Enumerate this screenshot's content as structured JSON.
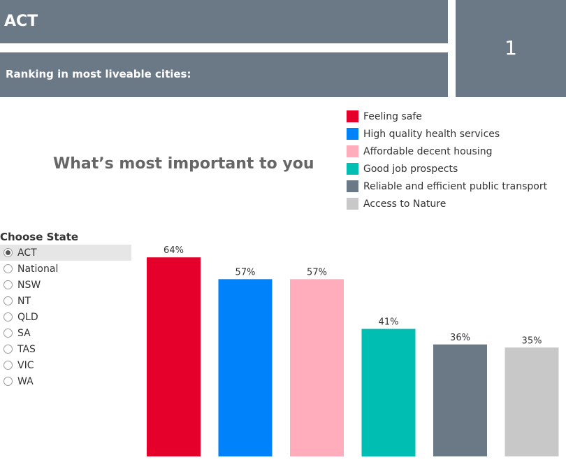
{
  "header": {
    "state_title": "ACT",
    "ranking_label": "Ranking in most liveable cities:",
    "ranking_value": "1"
  },
  "heading": "What’s most important to you",
  "filter": {
    "title": "Choose State",
    "selected": "ACT",
    "options": [
      "ACT",
      "National",
      "NSW",
      "NT",
      "QLD",
      "SA",
      "TAS",
      "VIC",
      "WA"
    ]
  },
  "legend": [
    {
      "label": "Feeling safe",
      "color": "#e4002b"
    },
    {
      "label": "High quality health services",
      "color": "#0082fb"
    },
    {
      "label": "Affordable decent housing",
      "color": "#ffadbc"
    },
    {
      "label": "Good job prospects",
      "color": "#00bfb2"
    },
    {
      "label": "Reliable and efficient public transport",
      "color": "#6b7886"
    },
    {
      "label": "Access to Nature",
      "color": "#c8c8c8"
    }
  ],
  "chart_data": {
    "type": "bar",
    "categories": [
      "Feeling safe",
      "High quality health services",
      "Affordable decent housing",
      "Good job prospects",
      "Reliable and efficient public transport",
      "Access to Nature"
    ],
    "values": [
      64,
      57,
      57,
      41,
      36,
      35
    ],
    "value_labels": [
      "64%",
      "57%",
      "57%",
      "41%",
      "36%",
      "35%"
    ],
    "colors": [
      "#e4002b",
      "#0082fb",
      "#ffadbc",
      "#00bfb2",
      "#6b7886",
      "#c8c8c8"
    ],
    "xlabel": "",
    "ylabel": "",
    "grid": false
  }
}
